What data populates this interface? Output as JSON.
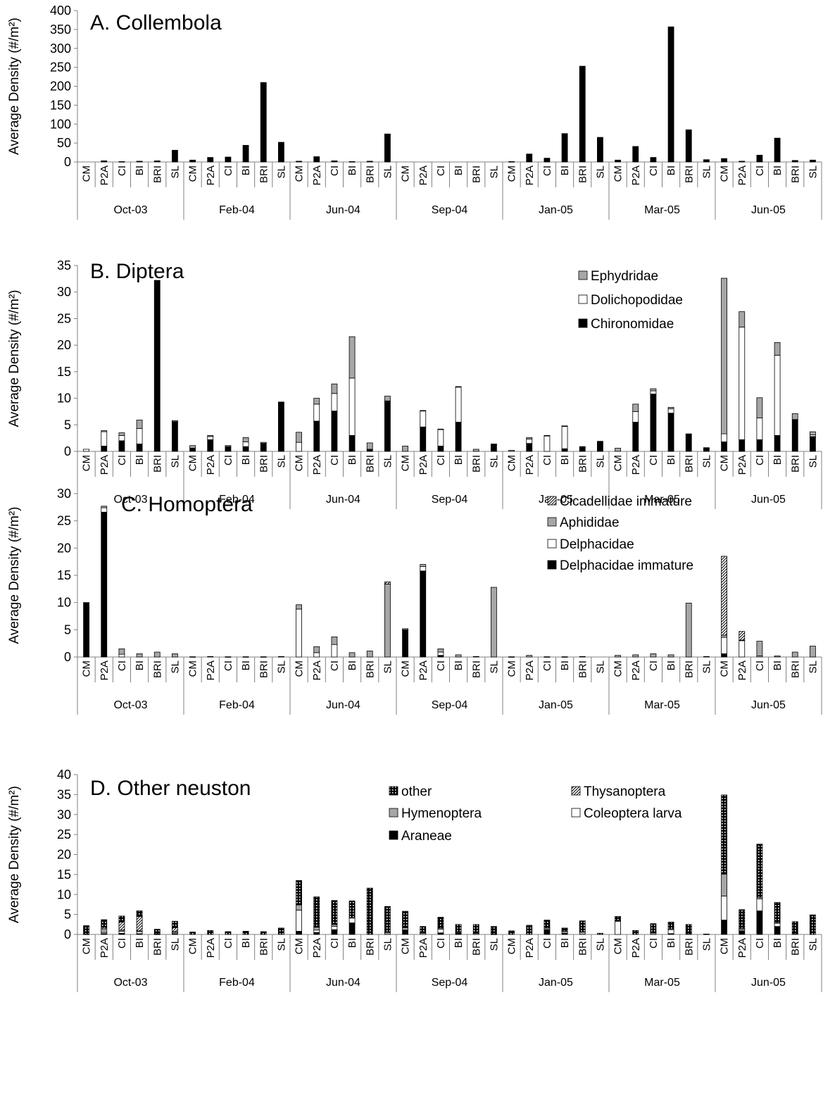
{
  "figure": {
    "ylabel": "Average Density (#/m²)",
    "sites": [
      "CM",
      "P2A",
      "CI",
      "BI",
      "BRI",
      "SL"
    ],
    "months": [
      "Oct-03",
      "Feb-04",
      "Jun-04",
      "Sep-04",
      "Jan-05",
      "Mar-05",
      "Jun-05"
    ]
  },
  "colors": {
    "black": "#000000",
    "gray": "#a6a6a6",
    "white": "#ffffff",
    "axis": "#808080"
  },
  "chart_data": [
    {
      "type": "bar",
      "stacked": true,
      "title": "A. Collembola",
      "ylabel": "Average Density (#/m²)",
      "ylim": [
        0,
        400
      ],
      "yticks": [
        0,
        50,
        100,
        150,
        200,
        250,
        300,
        350,
        400
      ],
      "legend": null,
      "series": [
        {
          "name": "",
          "pattern": "black",
          "values": [
            0,
            3,
            1,
            2,
            3,
            31,
            5,
            12,
            13,
            44,
            210,
            52,
            2,
            14,
            3,
            1,
            2,
            74,
            0,
            0,
            0,
            0,
            0,
            0,
            1,
            21,
            10,
            75,
            253,
            65,
            5,
            41,
            12,
            357,
            85,
            6,
            9,
            2,
            18,
            63,
            4,
            5
          ]
        }
      ]
    },
    {
      "type": "bar",
      "stacked": true,
      "title": "B. Diptera",
      "ylabel": "Average Density (#/m²)",
      "ylim": [
        0,
        35
      ],
      "yticks": [
        0,
        5,
        10,
        15,
        20,
        25,
        30,
        35
      ],
      "legend": "top-right",
      "series": [
        {
          "name": "Chironomidae",
          "pattern": "black",
          "values": [
            0,
            1.0,
            2.0,
            1.4,
            32.2,
            5.6,
            0.6,
            2.2,
            0.9,
            0.9,
            1.5,
            9.2,
            0,
            5.7,
            7.6,
            3.0,
            0.4,
            9.5,
            0,
            4.6,
            1.0,
            5.5,
            0,
            1.3,
            0,
            1.5,
            0,
            0.5,
            0.8,
            1.8,
            0,
            5.5,
            10.8,
            7.2,
            3.2,
            0.6,
            1.8,
            2.2,
            2.2,
            3.0,
            6.0,
            2.8
          ]
        },
        {
          "name": "Dolichopodidae",
          "pattern": "white",
          "values": [
            0.4,
            2.7,
            1.0,
            2.9,
            0,
            0,
            0,
            0.6,
            0,
            0.9,
            0,
            0,
            1.7,
            3.2,
            3.3,
            10.8,
            0,
            0,
            0,
            3.0,
            3.1,
            6.6,
            0,
            0,
            0,
            0.8,
            2.9,
            4.2,
            0,
            0,
            0,
            2.0,
            0.6,
            0.8,
            0,
            0,
            1.5,
            21.2,
            4.1,
            15.1,
            0,
            0.3
          ]
        },
        {
          "name": "Ephydridae",
          "pattern": "gray",
          "values": [
            0,
            0.2,
            0.5,
            1.6,
            0,
            0.2,
            0.5,
            0.2,
            0.2,
            0.8,
            0.2,
            0.1,
            1.9,
            1.1,
            1.8,
            7.8,
            1.2,
            0.9,
            1.0,
            0.1,
            0.1,
            0.1,
            0.4,
            0.1,
            0.2,
            0.3,
            0.1,
            0.1,
            0.1,
            0.1,
            0.6,
            1.4,
            0.4,
            0.3,
            0.1,
            0.1,
            29.3,
            2.9,
            3.8,
            2.4,
            1.1,
            0.6
          ]
        }
      ]
    },
    {
      "type": "bar",
      "stacked": true,
      "title": "C. Homoptera",
      "ylabel": "Average Density (#/m²)",
      "ylim": [
        0,
        30
      ],
      "yticks": [
        0,
        5,
        10,
        15,
        20,
        25,
        30
      ],
      "legend": "top-right",
      "series": [
        {
          "name": "Delphacidae immature",
          "pattern": "black",
          "values": [
            10.0,
            26.6,
            0,
            0,
            0,
            0,
            0,
            0,
            0,
            0,
            0,
            0,
            0,
            0,
            0,
            0,
            0,
            0,
            5.0,
            15.8,
            0.3,
            0,
            0,
            0,
            0,
            0,
            0,
            0,
            0,
            0,
            0,
            0,
            0,
            0,
            0,
            0,
            0.6,
            0,
            0,
            0,
            0,
            0
          ]
        },
        {
          "name": "Delphacidae",
          "pattern": "white",
          "values": [
            0,
            0.8,
            0.5,
            0,
            0,
            0,
            0,
            0,
            0,
            0,
            0,
            0,
            8.8,
            0.8,
            2.3,
            0,
            0,
            0,
            0,
            0.8,
            0.6,
            0,
            0,
            0,
            0,
            0,
            0,
            0,
            0,
            0,
            0,
            0,
            0,
            0,
            0,
            0,
            3.0,
            3.0,
            0.2,
            0,
            0,
            0
          ]
        },
        {
          "name": "Aphididae",
          "pattern": "gray",
          "values": [
            0,
            0.3,
            1.0,
            0.6,
            0.9,
            0.6,
            0.05,
            0.1,
            0.05,
            0.05,
            0.05,
            0.1,
            0.8,
            1.1,
            1.4,
            0.8,
            1.1,
            13.4,
            0.2,
            0.4,
            0.6,
            0.4,
            0.1,
            12.8,
            0.05,
            0.3,
            0.05,
            0.05,
            0.1,
            0,
            0.3,
            0.4,
            0.6,
            0.4,
            9.9,
            0.1,
            0.4,
            0.1,
            2.7,
            0.2,
            0.9,
            2.0
          ]
        },
        {
          "name": "Cicadellidae immature",
          "pattern": "diag",
          "values": [
            0,
            0,
            0,
            0,
            0,
            0,
            0,
            0,
            0,
            0,
            0,
            0,
            0,
            0,
            0,
            0,
            0,
            0.4,
            0,
            0,
            0,
            0,
            0,
            0,
            0,
            0,
            0,
            0,
            0,
            0,
            0,
            0,
            0,
            0,
            0,
            0,
            14.5,
            1.6,
            0,
            0,
            0,
            0
          ]
        }
      ]
    },
    {
      "type": "bar",
      "stacked": true,
      "title": "D. Other neuston",
      "ylabel": "Average Density (#/m²)",
      "ylim": [
        0,
        40
      ],
      "yticks": [
        0,
        5,
        10,
        15,
        20,
        25,
        30,
        35,
        40
      ],
      "legend": "top-right",
      "series": [
        {
          "name": "Araneae",
          "pattern": "black",
          "values": [
            0,
            0.2,
            0.3,
            0.2,
            0.1,
            0.2,
            0,
            0,
            0,
            0,
            0,
            0,
            0.8,
            0.5,
            1.2,
            2.9,
            0,
            0,
            1.1,
            0,
            0.4,
            0.3,
            0,
            0,
            0,
            0,
            1.2,
            0.3,
            0,
            0,
            0,
            0,
            0,
            0.2,
            0,
            0,
            3.6,
            0.9,
            5.9,
            2.0,
            0,
            0
          ]
        },
        {
          "name": "Coleoptera larva",
          "pattern": "white",
          "values": [
            0,
            0.3,
            0.5,
            0.5,
            0,
            0.3,
            0,
            0,
            0,
            0,
            0,
            0,
            5.3,
            0.6,
            0.8,
            1.2,
            0,
            0,
            0,
            0.3,
            0.9,
            0,
            0,
            0,
            0,
            0,
            0,
            0.3,
            0,
            0,
            3.3,
            0,
            0,
            1.0,
            0,
            0,
            6.0,
            0.3,
            3.0,
            0.8,
            0,
            0
          ]
        },
        {
          "name": "Hymenoptera",
          "pattern": "gray",
          "values": [
            0.1,
            0.9,
            0.3,
            0.2,
            0.1,
            0.2,
            0,
            0,
            0,
            0,
            0,
            0,
            1.3,
            0.7,
            0.5,
            0,
            0,
            0.5,
            0.6,
            0.2,
            0.3,
            0.2,
            0.3,
            0.1,
            0,
            0,
            0.4,
            0.3,
            0.6,
            0,
            0,
            0,
            0.4,
            0.2,
            0.2,
            0,
            5.5,
            0.3,
            0.4,
            0.2,
            0.2,
            0
          ]
        },
        {
          "name": "Thysanoptera",
          "pattern": "diag",
          "values": [
            0,
            0.4,
            2.0,
            3.6,
            0,
            1.0,
            0,
            0,
            0,
            0,
            0,
            0,
            0,
            0,
            0,
            0,
            0,
            0,
            0,
            0,
            0,
            0,
            0,
            0,
            0,
            0,
            0,
            0,
            0,
            0,
            0,
            0,
            0,
            0,
            0,
            0,
            0,
            0,
            0,
            0,
            0,
            0
          ]
        },
        {
          "name": "other",
          "pattern": "dots",
          "values": [
            2.1,
            1.9,
            1.5,
            1.4,
            1.1,
            1.6,
            0.6,
            1.0,
            0.7,
            0.8,
            0.7,
            1.6,
            6.1,
            7.6,
            6.0,
            4.3,
            11.6,
            6.5,
            4.1,
            1.5,
            2.7,
            2.0,
            2.2,
            1.9,
            0.9,
            2.3,
            2.0,
            0.7,
            2.8,
            0.3,
            1.2,
            1.0,
            2.3,
            1.7,
            2.3,
            0.1,
            19.8,
            4.7,
            13.3,
            5.0,
            3.0,
            4.9
          ]
        }
      ]
    }
  ]
}
